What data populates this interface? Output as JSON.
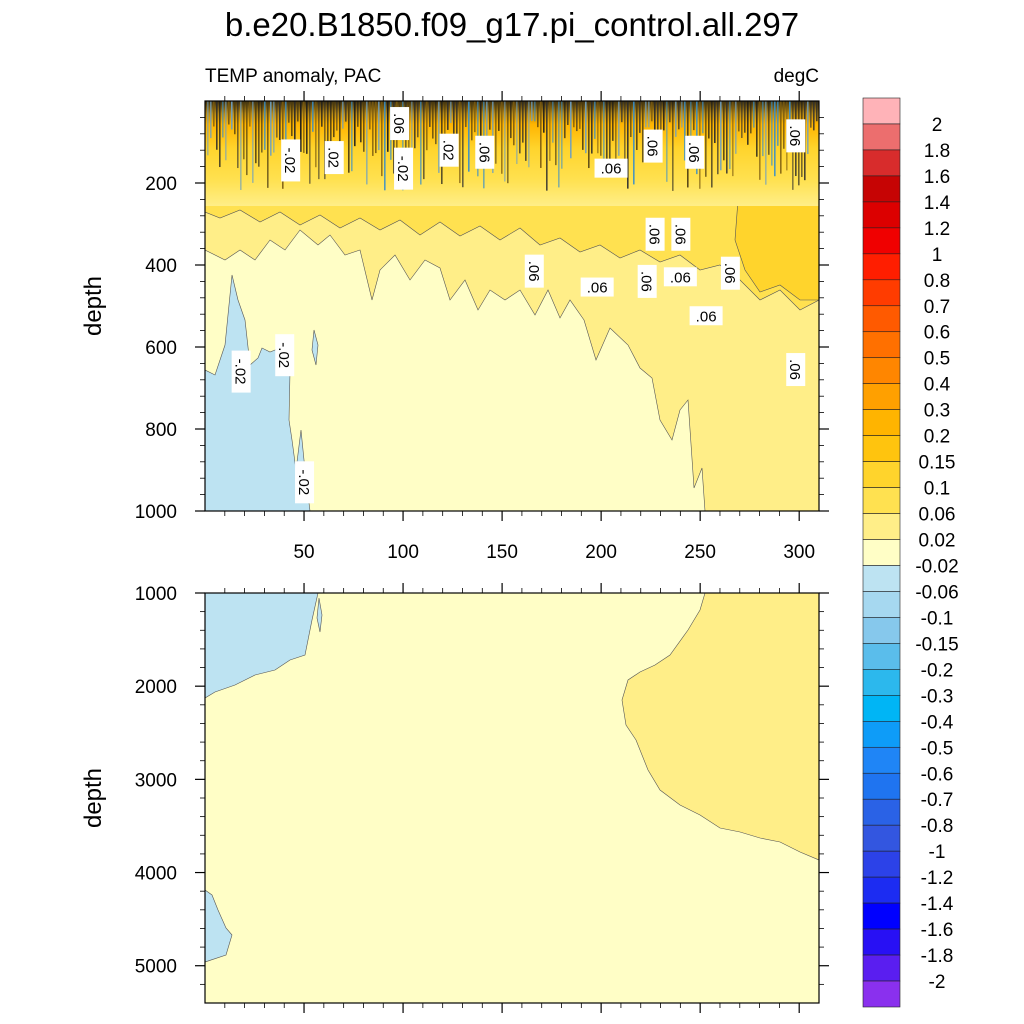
{
  "title": "b.e20.B1850.f09_g17.pi_control.all.297",
  "chart_data": [
    {
      "type": "contour",
      "panel": "upper",
      "subtitle_left": "TEMP anomaly, PAC",
      "subtitle_right": "degC",
      "ylabel": "depth",
      "xlabel": "",
      "xlim": [
        0,
        310
      ],
      "ylim": [
        0,
        1000
      ],
      "y_inverted": true,
      "x_ticks": [
        50,
        100,
        150,
        200,
        250,
        300
      ],
      "x_tick_labels": [
        "50",
        "100",
        "150",
        "200",
        "250",
        "300"
      ],
      "y_ticks": [
        200,
        400,
        600,
        800,
        1000
      ],
      "y_tick_labels": [
        "200",
        "400",
        "600",
        "800",
        "1000"
      ],
      "contour_labels": [
        {
          "text": "-.02",
          "x": 18,
          "y": 660
        },
        {
          "text": "-.02",
          "x": 40,
          "y": 620
        },
        {
          "text": "-.02",
          "x": 50,
          "y": 930
        },
        {
          "text": ".06",
          "x": 98,
          "y": 55
        },
        {
          "text": "-.02",
          "x": 100,
          "y": 165
        },
        {
          "text": "-.02",
          "x": 43,
          "y": 145
        },
        {
          "text": ".02",
          "x": 65,
          "y": 138
        },
        {
          "text": ".02",
          "x": 123,
          "y": 120
        },
        {
          "text": ".06",
          "x": 141,
          "y": 125
        },
        {
          "text": ".06",
          "x": 166,
          "y": 415
        },
        {
          "text": ".06",
          "x": 205,
          "y": 165
        },
        {
          "text": ".06",
          "x": 227,
          "y": 325
        },
        {
          "text": ".06",
          "x": 223,
          "y": 440
        },
        {
          "text": ".06",
          "x": 198,
          "y": 455
        },
        {
          "text": ".06",
          "x": 226,
          "y": 110
        },
        {
          "text": ".06",
          "x": 240,
          "y": 325
        },
        {
          "text": ".06",
          "x": 240,
          "y": 430
        },
        {
          "text": ".06",
          "x": 247,
          "y": 125
        },
        {
          "text": ".06",
          "x": 265,
          "y": 420
        },
        {
          "text": ".06",
          "x": 253,
          "y": 525
        },
        {
          "text": ".06",
          "x": 298,
          "y": 85
        },
        {
          "text": ".06",
          "x": 298,
          "y": 655
        }
      ]
    },
    {
      "type": "contour",
      "panel": "lower",
      "ylabel": "depth",
      "xlim": [
        0,
        310
      ],
      "ylim": [
        1000,
        5400
      ],
      "y_inverted": true,
      "x_ticks": [
        50,
        100,
        150,
        200,
        250,
        300
      ],
      "y_ticks": [
        1000,
        2000,
        3000,
        4000,
        5000
      ],
      "y_tick_labels": [
        "1000",
        "2000",
        "3000",
        "4000",
        "5000"
      ]
    }
  ],
  "colorbar": {
    "labels": [
      "2",
      "1.8",
      "1.6",
      "1.4",
      "1.2",
      "1",
      "0.8",
      "0.7",
      "0.6",
      "0.5",
      "0.4",
      "0.3",
      "0.2",
      "0.15",
      "0.1",
      "0.06",
      "0.02",
      "-0.02",
      "-0.06",
      "-0.1",
      "-0.15",
      "-0.2",
      "-0.3",
      "-0.4",
      "-0.5",
      "-0.6",
      "-0.7",
      "-0.8",
      "-1",
      "-1.2",
      "-1.4",
      "-1.6",
      "-1.8",
      "-2"
    ],
    "colors": [
      "#ffb3b8",
      "#ec6e6e",
      "#d82c2c",
      "#c60404",
      "#dc0000",
      "#f00000",
      "#ff1e00",
      "#ff3c00",
      "#ff5a00",
      "#ff7000",
      "#ff8600",
      "#ffa000",
      "#ffb400",
      "#ffc40e",
      "#ffd42c",
      "#ffe150",
      "#ffee88",
      "#fffec6",
      "#bde3f2",
      "#a6d8f0",
      "#86c8ec",
      "#5abdeb",
      "#2cb8ed",
      "#00b5f5",
      "#0e9cf8",
      "#1f85f6",
      "#1f74f0",
      "#2a62e6",
      "#3356e0",
      "#2c42e8",
      "#1c2cf2",
      "#0000ff",
      "#2810f4",
      "#5a1ef0",
      "#8a30ee"
    ]
  }
}
